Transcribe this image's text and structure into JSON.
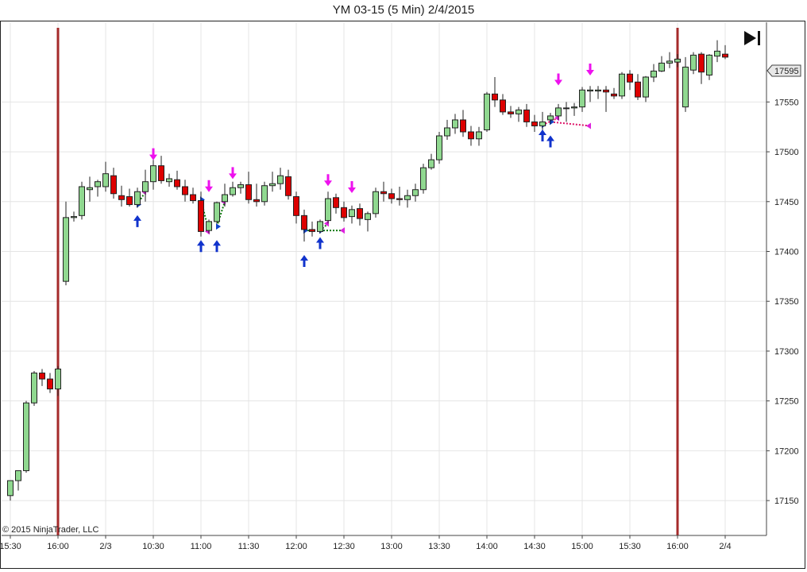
{
  "title": "YM 03-15 (5 Min)  2/4/2015",
  "copyright": "© 2015 NinjaTrader, LLC",
  "price_label": "17595",
  "nav_icon": "skip-to-end-icon",
  "chart_data": {
    "type": "candlestick",
    "ylim": [
      17115,
      17630
    ],
    "y_ticks": [
      17150,
      17200,
      17250,
      17300,
      17350,
      17400,
      17450,
      17500,
      17550
    ],
    "x_ticks": [
      {
        "label": "15:30",
        "index": 0
      },
      {
        "label": "16:00",
        "index": 6
      },
      {
        "label": "2/3",
        "index": 12
      },
      {
        "label": "10:30",
        "index": 18
      },
      {
        "label": "11:00",
        "index": 24
      },
      {
        "label": "11:30",
        "index": 30
      },
      {
        "label": "12:00",
        "index": 36
      },
      {
        "label": "12:30",
        "index": 42
      },
      {
        "label": "13:00",
        "index": 48
      },
      {
        "label": "13:30",
        "index": 54
      },
      {
        "label": "14:00",
        "index": 60
      },
      {
        "label": "14:30",
        "index": 66
      },
      {
        "label": "15:00",
        "index": 72
      },
      {
        "label": "15:30",
        "index": 78
      },
      {
        "label": "16:00",
        "index": 84
      },
      {
        "label": "2/4",
        "index": 90
      }
    ],
    "session_breaks": [
      6,
      84
    ],
    "grid": true,
    "up_color": "#90d890",
    "down_color": "#dd0000",
    "candles": [
      [
        17155,
        17170,
        17150,
        17170
      ],
      [
        17170,
        17180,
        17160,
        17180
      ],
      [
        17180,
        17250,
        17178,
        17248
      ],
      [
        17248,
        17280,
        17245,
        17278
      ],
      [
        17278,
        17282,
        17265,
        17272
      ],
      [
        17272,
        17278,
        17258,
        17262
      ],
      [
        17262,
        17285,
        17255,
        17282
      ],
      [
        17370,
        17450,
        17366,
        17434
      ],
      [
        17434,
        17440,
        17430,
        17435
      ],
      [
        17436,
        17470,
        17432,
        17465
      ],
      [
        17462,
        17475,
        17450,
        17464
      ],
      [
        17465,
        17472,
        17455,
        17470
      ],
      [
        17465,
        17490,
        17460,
        17478
      ],
      [
        17476,
        17484,
        17453,
        17458
      ],
      [
        17456,
        17466,
        17445,
        17452
      ],
      [
        17455,
        17463,
        17445,
        17447
      ],
      [
        17447,
        17464,
        17444,
        17460
      ],
      [
        17460,
        17482,
        17450,
        17470
      ],
      [
        17470,
        17492,
        17462,
        17486
      ],
      [
        17486,
        17496,
        17468,
        17471
      ],
      [
        17470,
        17478,
        17465,
        17473
      ],
      [
        17472,
        17481,
        17462,
        17465
      ],
      [
        17465,
        17472,
        17450,
        17457
      ],
      [
        17457,
        17464,
        17448,
        17451
      ],
      [
        17451,
        17460,
        17415,
        17420
      ],
      [
        17421,
        17432,
        17418,
        17430
      ],
      [
        17430,
        17450,
        17428,
        17449
      ],
      [
        17450,
        17468,
        17445,
        17457
      ],
      [
        17457,
        17470,
        17455,
        17464
      ],
      [
        17464,
        17470,
        17458,
        17467
      ],
      [
        17467,
        17480,
        17448,
        17452
      ],
      [
        17452,
        17468,
        17445,
        17450
      ],
      [
        17450,
        17470,
        17446,
        17466
      ],
      [
        17466,
        17480,
        17460,
        17468
      ],
      [
        17468,
        17484,
        17462,
        17476
      ],
      [
        17475,
        17482,
        17452,
        17456
      ],
      [
        17455,
        17460,
        17428,
        17436
      ],
      [
        17436,
        17442,
        17410,
        17422
      ],
      [
        17422,
        17430,
        17415,
        17420
      ],
      [
        17420,
        17432,
        17418,
        17430
      ],
      [
        17431,
        17460,
        17428,
        17453
      ],
      [
        17454,
        17458,
        17438,
        17444
      ],
      [
        17444,
        17450,
        17430,
        17434
      ],
      [
        17435,
        17446,
        17428,
        17442
      ],
      [
        17443,
        17448,
        17426,
        17433
      ],
      [
        17432,
        17440,
        17420,
        17438
      ],
      [
        17438,
        17464,
        17434,
        17460
      ],
      [
        17460,
        17470,
        17450,
        17458
      ],
      [
        17458,
        17463,
        17448,
        17453
      ],
      [
        17453,
        17465,
        17446,
        17452
      ],
      [
        17452,
        17462,
        17444,
        17456
      ],
      [
        17456,
        17468,
        17450,
        17462
      ],
      [
        17462,
        17488,
        17458,
        17484
      ],
      [
        17484,
        17498,
        17482,
        17492
      ],
      [
        17492,
        17520,
        17488,
        17516
      ],
      [
        17516,
        17532,
        17512,
        17524
      ],
      [
        17524,
        17538,
        17518,
        17532
      ],
      [
        17532,
        17542,
        17515,
        17520
      ],
      [
        17520,
        17526,
        17506,
        17513
      ],
      [
        17513,
        17525,
        17506,
        17520
      ],
      [
        17522,
        17560,
        17520,
        17558
      ],
      [
        17558,
        17575,
        17545,
        17552
      ],
      [
        17552,
        17558,
        17537,
        17540
      ],
      [
        17540,
        17546,
        17534,
        17538
      ],
      [
        17538,
        17545,
        17530,
        17542
      ],
      [
        17542,
        17548,
        17525,
        17530
      ],
      [
        17530,
        17537,
        17520,
        17526
      ],
      [
        17526,
        17540,
        17518,
        17530
      ],
      [
        17532,
        17539,
        17528,
        17536
      ],
      [
        17536,
        17548,
        17532,
        17544
      ],
      [
        17544,
        17550,
        17530,
        17544
      ],
      [
        17544,
        17549,
        17536,
        17545
      ],
      [
        17545,
        17565,
        17540,
        17562
      ],
      [
        17561,
        17566,
        17550,
        17562
      ],
      [
        17561,
        17566,
        17553,
        17562
      ],
      [
        17562,
        17566,
        17540,
        17560
      ],
      [
        17558,
        17564,
        17553,
        17556
      ],
      [
        17556,
        17580,
        17553,
        17578
      ],
      [
        17578,
        17582,
        17562,
        17570
      ],
      [
        17570,
        17578,
        17552,
        17555
      ],
      [
        17555,
        17576,
        17550,
        17575
      ],
      [
        17575,
        17588,
        17570,
        17581
      ],
      [
        17581,
        17596,
        17580,
        17589
      ],
      [
        17589,
        17600,
        17584,
        17591
      ],
      [
        17590,
        17598,
        17585,
        17593
      ],
      [
        17545,
        17595,
        17540,
        17585
      ],
      [
        17582,
        17600,
        17578,
        17597
      ],
      [
        17598,
        17600,
        17568,
        17580
      ],
      [
        17577,
        17598,
        17572,
        17597
      ],
      [
        17596,
        17612,
        17590,
        17601
      ],
      [
        17598,
        17607,
        17593,
        17595
      ]
    ],
    "signals": [
      {
        "type": "buy",
        "index": 16,
        "price": 17430
      },
      {
        "type": "sell",
        "index": 18,
        "price": 17498
      },
      {
        "type": "buy",
        "index": 24,
        "price": 17405
      },
      {
        "type": "sell",
        "index": 25,
        "price": 17466
      },
      {
        "type": "buy",
        "index": 26,
        "price": 17405
      },
      {
        "type": "sell",
        "index": 28,
        "price": 17479
      },
      {
        "type": "buy",
        "index": 37,
        "price": 17390
      },
      {
        "type": "buy",
        "index": 39,
        "price": 17408
      },
      {
        "type": "sell",
        "index": 40,
        "price": 17472
      },
      {
        "type": "sell",
        "index": 43,
        "price": 17465
      },
      {
        "type": "buy",
        "index": 67,
        "price": 17516
      },
      {
        "type": "buy",
        "index": 68,
        "price": 17510
      },
      {
        "type": "sell",
        "index": 69,
        "price": 17573
      },
      {
        "type": "sell",
        "index": 73,
        "price": 17583
      }
    ],
    "connectors": [
      {
        "from": [
          16,
          17447
        ],
        "to": [
          17,
          17460
        ],
        "color": "#0a7a0a"
      },
      {
        "from": [
          24,
          17452
        ],
        "to": [
          25,
          17420
        ],
        "color": "#0a7a0a"
      },
      {
        "from": [
          26,
          17425
        ],
        "to": [
          27,
          17450
        ],
        "color": "#0a7a0a"
      },
      {
        "from": [
          37,
          17421
        ],
        "to": [
          42,
          17421
        ],
        "color": "#0a7a0a"
      },
      {
        "from": [
          39,
          17421
        ],
        "to": [
          40,
          17428
        ],
        "color": "#0a7a0a"
      },
      {
        "from": [
          67,
          17527
        ],
        "to": [
          69,
          17534
        ],
        "color": "#dd1166"
      },
      {
        "from": [
          68,
          17530
        ],
        "to": [
          73,
          17526
        ],
        "color": "#dd1166"
      }
    ]
  }
}
